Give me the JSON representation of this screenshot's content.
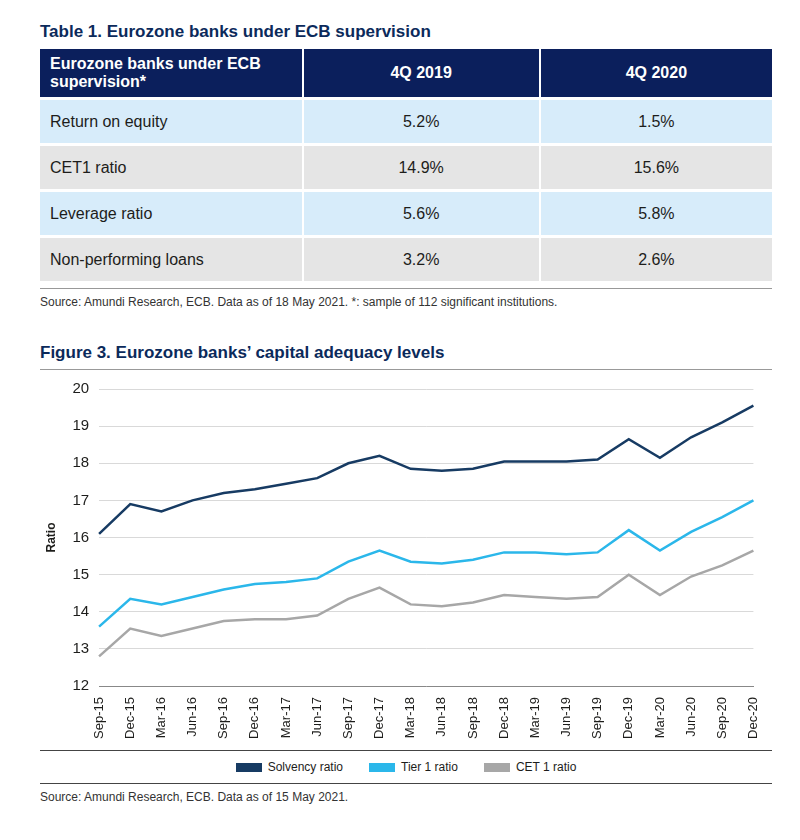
{
  "table": {
    "title": "Table 1. Eurozone banks under ECB supervision",
    "header": [
      "Eurozone banks under ECB supervision*",
      "4Q 2019",
      "4Q 2020"
    ],
    "rows": [
      [
        "Return on equity",
        "5.2%",
        "1.5%"
      ],
      [
        "CET1 ratio",
        "14.9%",
        "15.6%"
      ],
      [
        "Leverage ratio",
        "5.6%",
        "5.8%"
      ],
      [
        "Non-performing loans",
        "3.2%",
        "2.6%"
      ]
    ],
    "source": "Source: Amundi Research, ECB. Data as of 18 May 2021. *: sample of 112 significant institutions."
  },
  "chart_data": {
    "type": "line",
    "title": "Figure 3. Eurozone banks’ capital adequacy levels",
    "y_label": "Ratio",
    "categories": [
      "Sep-15",
      "Dec-15",
      "Mar-16",
      "Jun-16",
      "Sep-16",
      "Dec-16",
      "Mar-17",
      "Jun-17",
      "Sep-17",
      "Dec-17",
      "Mar-18",
      "Jun-18",
      "Sep-18",
      "Dec-18",
      "Mar-19",
      "Jun-19",
      "Sep-19",
      "Dec-19",
      "Mar-20",
      "Jun-20",
      "Sep-20",
      "Dec-20"
    ],
    "series": [
      {
        "name": "Solvency ratio",
        "color": "#173b63",
        "values": [
          16.1,
          16.9,
          16.7,
          17.0,
          17.2,
          17.3,
          17.45,
          17.6,
          18.0,
          18.2,
          17.85,
          17.8,
          17.85,
          18.05,
          18.05,
          18.05,
          18.1,
          18.65,
          18.15,
          18.7,
          19.1,
          19.55
        ]
      },
      {
        "name": "Tier 1 ratio",
        "color": "#2bb7ea",
        "values": [
          13.6,
          14.35,
          14.2,
          14.4,
          14.6,
          14.75,
          14.8,
          14.9,
          15.35,
          15.65,
          15.35,
          15.3,
          15.4,
          15.6,
          15.6,
          15.55,
          15.6,
          16.2,
          15.65,
          16.15,
          16.55,
          17.0
        ]
      },
      {
        "name": "CET 1 ratio",
        "color": "#a7a7a7",
        "values": [
          12.8,
          13.55,
          13.35,
          13.55,
          13.75,
          13.8,
          13.8,
          13.9,
          14.35,
          14.65,
          14.2,
          14.15,
          14.25,
          14.45,
          14.4,
          14.35,
          14.4,
          15.0,
          14.45,
          14.95,
          15.25,
          15.65
        ]
      }
    ],
    "ylim": [
      12,
      20
    ],
    "yticks": [
      12,
      13,
      14,
      15,
      16,
      17,
      18,
      19,
      20
    ],
    "grid": true,
    "legend": "bottom",
    "source": "Source: Amundi Research, ECB. Data as of 15 May 2021."
  }
}
